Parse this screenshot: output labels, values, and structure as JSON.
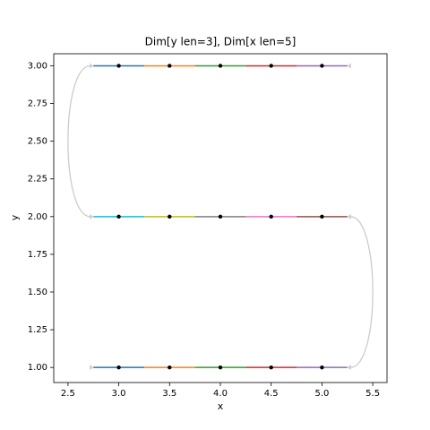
{
  "chart_data": {
    "type": "segments",
    "title": "Dim[y len=3], Dim[x len=5]",
    "x_label": "x",
    "y_label": "y",
    "xlim": [
      2.36,
      5.64
    ],
    "ylim": [
      0.9,
      3.08
    ],
    "xticks": [
      {
        "value": 2.5,
        "label": "2.5"
      },
      {
        "value": 3,
        "label": "3.0"
      },
      {
        "value": 3.5,
        "label": "3.5"
      },
      {
        "value": 4,
        "label": "4.0"
      },
      {
        "value": 4.5,
        "label": "4.5"
      },
      {
        "value": 5,
        "label": "5.0"
      },
      {
        "value": 5.5,
        "label": "5.5"
      }
    ],
    "yticks": [
      {
        "value": 1,
        "label": "1.00"
      },
      {
        "value": 1.25,
        "label": "1.25"
      },
      {
        "value": 1.5,
        "label": "1.50"
      },
      {
        "value": 1.75,
        "label": "1.75"
      },
      {
        "value": 2,
        "label": "2.00"
      },
      {
        "value": 2.25,
        "label": "2.25"
      },
      {
        "value": 2.5,
        "label": "2.50"
      },
      {
        "value": 2.75,
        "label": "2.75"
      },
      {
        "value": 3,
        "label": "3.00"
      }
    ],
    "rows": [
      {
        "y": 3,
        "x": [
          3,
          3.5,
          4,
          4.5,
          5
        ],
        "edges": [
          2.75,
          3.25,
          3.75,
          4.25,
          4.75,
          5.25
        ],
        "colors": [
          "#1f77b4",
          "#ff7f0e",
          "#2ca02c",
          "#d62728",
          "#9467bd"
        ]
      },
      {
        "y": 2,
        "x": [
          3,
          3.5,
          4,
          4.5,
          5
        ],
        "edges": [
          2.75,
          3.25,
          3.75,
          4.25,
          4.75,
          5.25
        ],
        "colors": [
          "#17becf",
          "#bcbd22",
          "#7f7f7f",
          "#e377c2",
          "#8c564b"
        ]
      },
      {
        "y": 1,
        "x": [
          3,
          3.5,
          4,
          4.5,
          5
        ],
        "edges": [
          2.75,
          3.25,
          3.75,
          4.25,
          4.75,
          5.25
        ],
        "colors": [
          "#1f77b4",
          "#ff7f0e",
          "#2ca02c",
          "#d62728",
          "#9467bd"
        ]
      }
    ],
    "connectors": [
      {
        "x": 2.72,
        "from_y": 3,
        "to_y": 2,
        "bulge_x": 2.5
      },
      {
        "x": 5.28,
        "from_y": 2,
        "to_y": 1,
        "bulge_x": 5.5
      }
    ],
    "connector_color": "#cccccc",
    "point_color": "#000000"
  }
}
